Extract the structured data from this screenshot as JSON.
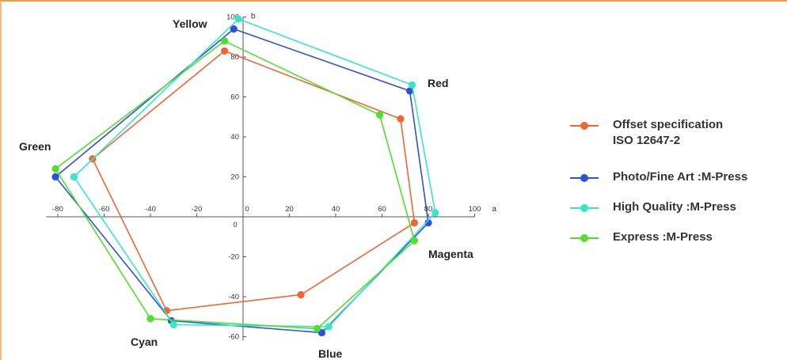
{
  "chart_data": {
    "type": "radar-polygon",
    "xlabel": "a",
    "ylabel": "b",
    "xlim": [
      -85,
      105
    ],
    "ylim": [
      -62,
      100
    ],
    "x_ticks": [
      -80,
      -60,
      -40,
      -20,
      0,
      20,
      40,
      60,
      80,
      100
    ],
    "y_ticks": [
      -60,
      -40,
      -20,
      0,
      20,
      40,
      60,
      80,
      100
    ],
    "vertex_labels": [
      "Yellow",
      "Red",
      "Magenta",
      "Blue",
      "Cyan",
      "Green"
    ],
    "series": [
      {
        "name": "Offset specification\nISO 12647-2",
        "color": "#f26532",
        "points": [
          {
            "vertex": "Yellow",
            "a": -8,
            "b": 83
          },
          {
            "vertex": "Red",
            "a": 68,
            "b": 49
          },
          {
            "vertex": "Magenta",
            "a": 74,
            "b": -3
          },
          {
            "vertex": "Blue",
            "a": 25,
            "b": -39
          },
          {
            "vertex": "Cyan",
            "a": -33,
            "b": -47
          },
          {
            "vertex": "Green",
            "a": -65,
            "b": 29
          }
        ]
      },
      {
        "name": "Photo/Fine Art :M-Press",
        "color": "#2f4fe0",
        "points": [
          {
            "vertex": "Yellow",
            "a": -4,
            "b": 94
          },
          {
            "vertex": "Red",
            "a": 72,
            "b": 63
          },
          {
            "vertex": "Magenta",
            "a": 80,
            "b": -3
          },
          {
            "vertex": "Blue",
            "a": 34,
            "b": -58
          },
          {
            "vertex": "Cyan",
            "a": -31,
            "b": -52
          },
          {
            "vertex": "Green",
            "a": -81,
            "b": 20
          }
        ]
      },
      {
        "name": "High Quality :M-Press",
        "color": "#33e8c5",
        "points": [
          {
            "vertex": "Yellow",
            "a": -2,
            "b": 99
          },
          {
            "vertex": "Red",
            "a": 73,
            "b": 66
          },
          {
            "vertex": "Magenta",
            "a": 83,
            "b": 2
          },
          {
            "vertex": "Blue",
            "a": 37,
            "b": -55
          },
          {
            "vertex": "Cyan",
            "a": -30,
            "b": -54
          },
          {
            "vertex": "Green",
            "a": -73,
            "b": 20
          }
        ]
      },
      {
        "name": "Express :M-Press",
        "color": "#4fe02e",
        "points": [
          {
            "vertex": "Yellow",
            "a": -8,
            "b": 88
          },
          {
            "vertex": "Red",
            "a": 59,
            "b": 51
          },
          {
            "vertex": "Magenta",
            "a": 74,
            "b": -12
          },
          {
            "vertex": "Blue",
            "a": 32,
            "b": -56
          },
          {
            "vertex": "Cyan",
            "a": -40,
            "b": -51
          },
          {
            "vertex": "Green",
            "a": -81,
            "b": 24
          }
        ]
      }
    ]
  }
}
